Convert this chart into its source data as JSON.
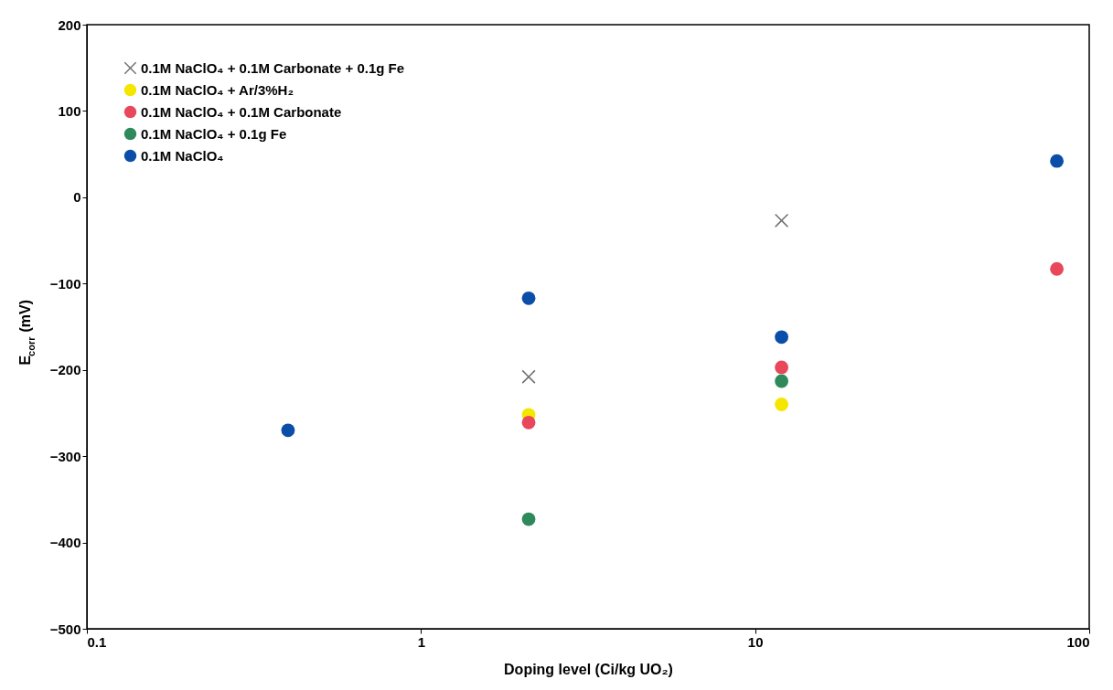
{
  "chart_data": {
    "type": "scatter",
    "xlabel": "Doping level    (Ci/kg UO₂)",
    "ylabel": "E$_{corr}$ (mV)",
    "log": "x",
    "xlim": [
      0.1,
      100
    ],
    "xticks": [
      0.1,
      1,
      10,
      100
    ],
    "ylim": [
      -500,
      200
    ],
    "yticks": [
      -500,
      -400,
      -300,
      -200,
      -100,
      0,
      100,
      200
    ],
    "grid": false,
    "legend": "top left",
    "series": [
      {
        "name": "0.1M NaClO₄ + 0.1M Carbonate + 0.1g Fe",
        "color": "#707070",
        "marker": "cross",
        "x": [
          2.1,
          12
        ],
        "values": [
          -208,
          -27
        ]
      },
      {
        "name": "0.1M NaClO₄ + Ar/3%H₂",
        "color": "#f5e600",
        "marker": "circle",
        "x": [
          2.1,
          12
        ],
        "values": [
          -252,
          -240
        ]
      },
      {
        "name": "0.1M NaClO₄ + 0.1M Carbonate",
        "color": "#e8485a",
        "marker": "circle",
        "x": [
          2.1,
          12,
          80
        ],
        "values": [
          -261,
          -197,
          -83
        ]
      },
      {
        "name": "0.1M NaClO₄ + 0.1g Fe",
        "color": "#2e8a5a",
        "marker": "circle",
        "x": [
          2.1,
          12
        ],
        "values": [
          -373,
          -213
        ]
      },
      {
        "name": "0.1M NaClO₄",
        "color": "#0a4ea8",
        "marker": "circle",
        "x": [
          0.4,
          2.1,
          12,
          80
        ],
        "values": [
          -270,
          -117,
          -162,
          42
        ]
      }
    ]
  }
}
